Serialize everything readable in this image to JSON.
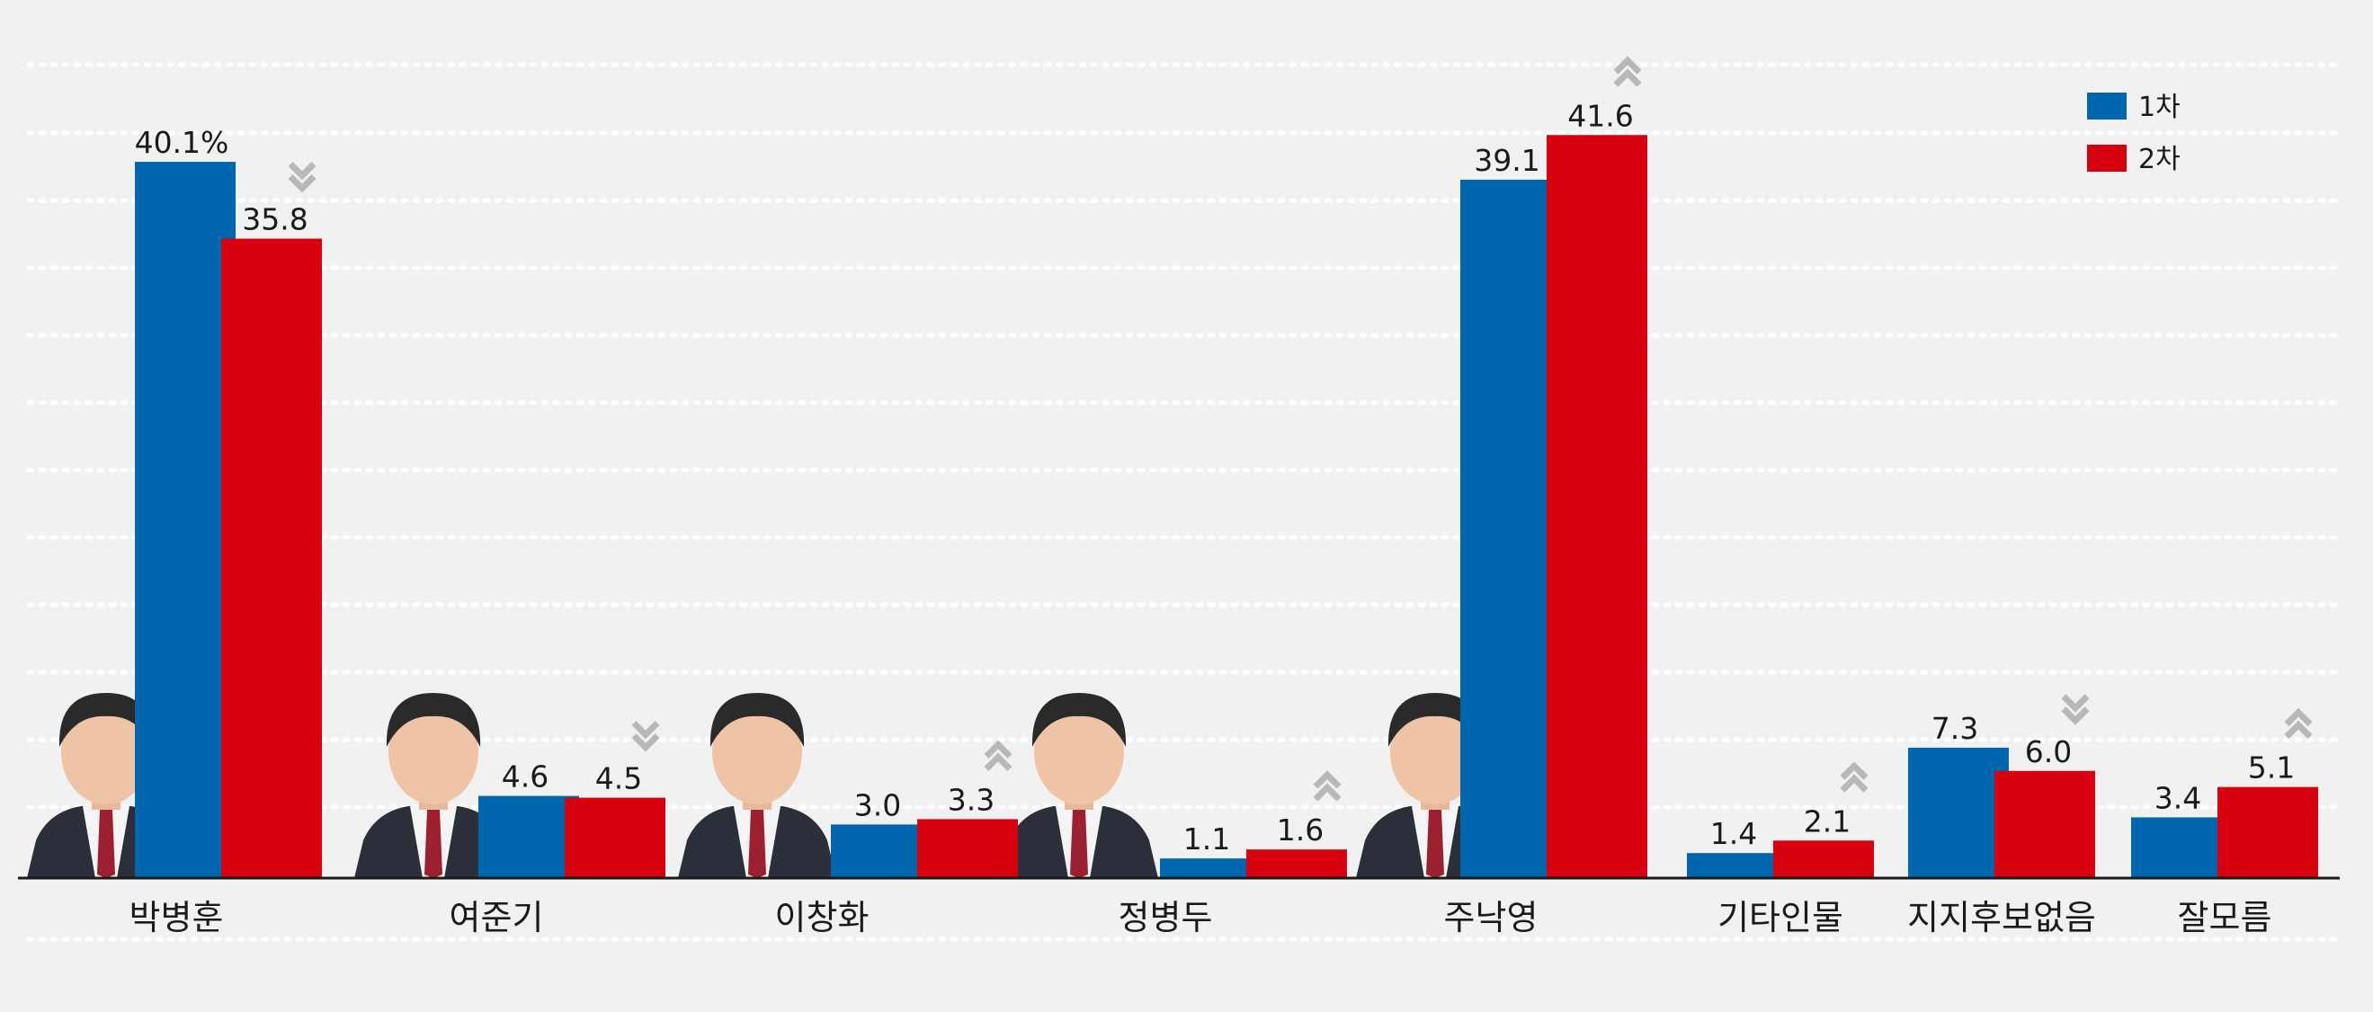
{
  "chart_data": {
    "type": "bar",
    "categories": [
      "박병훈",
      "여준기",
      "이창화",
      "정병두",
      "주낙영",
      "기타인물",
      "지지후보없음",
      "잘모름"
    ],
    "series": [
      {
        "name": "1차",
        "color": "#0066ad",
        "values": [
          40.1,
          4.6,
          3.0,
          1.1,
          39.1,
          1.4,
          7.3,
          3.4
        ]
      },
      {
        "name": "2차",
        "color": "#d7000f",
        "values": [
          35.8,
          4.5,
          3.3,
          1.6,
          41.6,
          2.1,
          6.0,
          5.1
        ]
      }
    ],
    "value_labels": {
      "1차": [
        "40.1%",
        "4.6",
        "3.0",
        "1.1",
        "39.1",
        "1.4",
        "7.3",
        "3.4"
      ],
      "2차": [
        "35.8",
        "4.5",
        "3.3",
        "1.6",
        "41.6",
        "2.1",
        "6.0",
        "5.1"
      ]
    },
    "trend": [
      "down",
      "down",
      "up",
      "up",
      "up",
      "up",
      "down",
      "up"
    ],
    "candidate_photos": [
      "박병훈",
      "여준기",
      "이창화",
      "정병두",
      "주낙영"
    ],
    "ylim": [
      0,
      45
    ],
    "grid": true,
    "legend_position": "top-right",
    "colors": {
      "background": "#f1f1f2",
      "grid": "#ffffff",
      "axis": "#1a1a1a",
      "arrow": "#b8b8b8"
    }
  }
}
